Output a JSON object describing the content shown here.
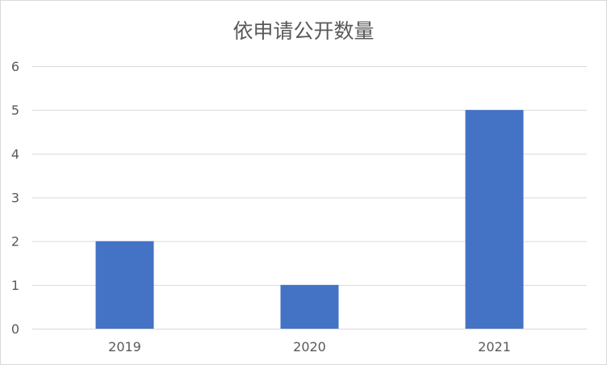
{
  "chart_data": {
    "type": "bar",
    "title": "依申请公开数量",
    "categories": [
      "2019",
      "2020",
      "2021"
    ],
    "values": [
      2,
      1,
      5
    ],
    "xlabel": "",
    "ylabel": "",
    "ylim": [
      0,
      6
    ],
    "yticks": [
      "0",
      "1",
      "2",
      "3",
      "4",
      "5",
      "6"
    ],
    "grid": true,
    "legend": "none",
    "colors": {
      "bar": "#4472C4",
      "grid": "#D9D9D9",
      "text": "#595959",
      "border": "#D9D9D9"
    }
  }
}
